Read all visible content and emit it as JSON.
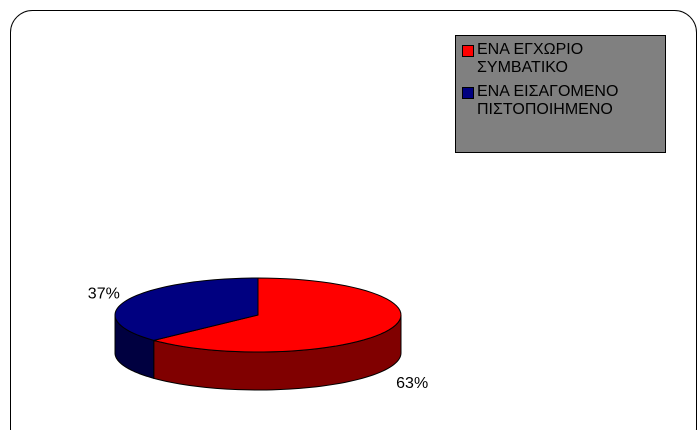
{
  "chart_data": {
    "type": "pie3d",
    "categories": [
      "ΕΝΑ ΕΓΧΩΡΙΟ ΣΥΜΒΑΤΙΚΟ",
      "ΕΝΑ ΕΙΣΑΓΟΜΕΝΟ ΠΙΣΤΟΠΟΙΗΜΕΝΟ"
    ],
    "values": [
      63,
      37
    ],
    "value_labels": [
      "63%",
      "37%"
    ],
    "colors": [
      "#ff0000",
      "#000080"
    ],
    "side_colors": [
      "#800000",
      "#000040"
    ],
    "legend": "top-right"
  }
}
